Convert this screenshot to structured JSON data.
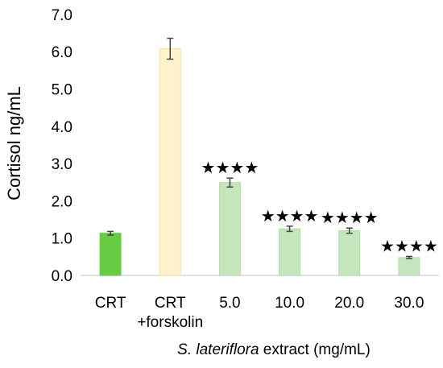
{
  "chart_data": {
    "type": "bar",
    "title": "",
    "ylabel": "Cortisol ng/mL",
    "xlabel": {
      "species": "S. lateriflora",
      "rest": " extract (mg/mL)"
    },
    "ylim": [
      0,
      7
    ],
    "yticks": [
      "0.0",
      "1.0",
      "2.0",
      "3.0",
      "4.0",
      "5.0",
      "6.0",
      "7.0"
    ],
    "grid": false,
    "legend": "none",
    "categories": [
      [
        "CRT"
      ],
      [
        "CRT",
        "+forskolin"
      ],
      [
        "5.0"
      ],
      [
        "10.0"
      ],
      [
        "20.0"
      ],
      [
        "30.0"
      ]
    ],
    "values": [
      1.13,
      6.08,
      2.49,
      1.25,
      1.2,
      0.48
    ],
    "errors": [
      0.05,
      0.28,
      0.12,
      0.07,
      0.07,
      0.03
    ],
    "significance": [
      "",
      "",
      "****",
      "****",
      "****",
      "****"
    ],
    "colors": {
      "fill": [
        "#66cc44",
        "#fff2cc",
        "#c5e6bd",
        "#c5e6bd",
        "#c5e6bd",
        "#c5e6bd"
      ],
      "stroke": [
        "#66cc44",
        "#f5df9c",
        "#b4dcab",
        "#b4dcab",
        "#b4dcab",
        "#b4dcab"
      ],
      "error_bar": "#444444",
      "axis": "#d9d9d9"
    }
  }
}
